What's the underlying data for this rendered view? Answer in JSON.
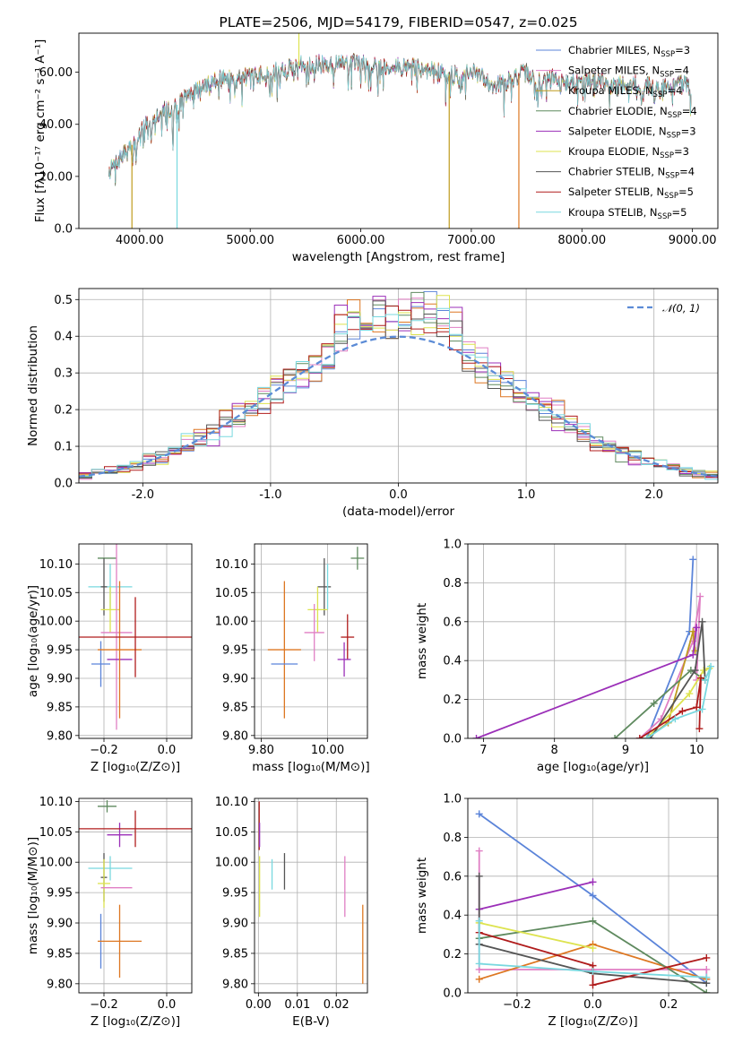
{
  "colors": {
    "Chabrier MILES": "#5b84d9",
    "Salpeter MILES": "#e07fc4",
    "Kroupa MILES": "#bf9b1e",
    "Chabrier ELODIE": "#5f8a5f",
    "Salpeter ELODIE": "#9b2fb8",
    "Kroupa ELODIE": "#dde34f",
    "Chabrier STELIB": "#555555",
    "Salpeter STELIB": "#b01c1c",
    "Kroupa STELIB": "#78d8df",
    "orange": "#dd7722",
    "gauss": "#5b8bd6"
  },
  "chart_data": [
    {
      "id": "spectrum",
      "type": "line",
      "title": "PLATE=2506, MJD=54179, FIBERID=0547, z=0.025",
      "xlabel": "wavelength [Angstrom, rest frame]",
      "ylabel": "Flux [fλ10⁻¹⁷ erg cm⁻² s⁻¹ A⁻¹]",
      "xlim": [
        3450,
        9230
      ],
      "ylim": [
        0,
        75
      ],
      "xticks": [
        4000,
        5000,
        6000,
        7000,
        8000,
        9000
      ],
      "yticks": [
        0,
        20,
        40,
        60
      ],
      "grid": false,
      "legend_position": "top-right",
      "series_names": [
        "Chabrier MILES",
        "Salpeter MILES",
        "Kroupa MILES",
        "Chabrier ELODIE",
        "Salpeter ELODIE",
        "Kroupa ELODIE",
        "Chabrier STELIB",
        "Salpeter STELIB",
        "Kroupa STELIB"
      ],
      "legend": [
        {
          "label": "Chabrier MILES, N",
          "sub": "SSP",
          "suffix": "=3"
        },
        {
          "label": "Salpeter MILES, N",
          "sub": "SSP",
          "suffix": "=4"
        },
        {
          "label": "Kroupa MILES, N",
          "sub": "SSP",
          "suffix": "=4"
        },
        {
          "label": "Chabrier ELODIE, N",
          "sub": "SSP",
          "suffix": "=4"
        },
        {
          "label": "Salpeter ELODIE, N",
          "sub": "SSP",
          "suffix": "=3"
        },
        {
          "label": "Kroupa ELODIE, N",
          "sub": "SSP",
          "suffix": "=3"
        },
        {
          "label": "Chabrier STELIB, N",
          "sub": "SSP",
          "suffix": "=4"
        },
        {
          "label": "Salpeter STELIB, N",
          "sub": "SSP",
          "suffix": "=5"
        },
        {
          "label": "Kroupa STELIB, N",
          "sub": "SSP",
          "suffix": "=5"
        }
      ],
      "continuum": [
        [
          3720,
          22
        ],
        [
          3800,
          26
        ],
        [
          3900,
          30
        ],
        [
          4000,
          37
        ],
        [
          4100,
          42
        ],
        [
          4200,
          45
        ],
        [
          4300,
          46
        ],
        [
          4400,
          50
        ],
        [
          4500,
          53
        ],
        [
          4600,
          55
        ],
        [
          4700,
          57
        ],
        [
          4800,
          58
        ],
        [
          4900,
          59
        ],
        [
          5000,
          58
        ],
        [
          5100,
          59
        ],
        [
          5200,
          60
        ],
        [
          5300,
          61
        ],
        [
          5400,
          62
        ],
        [
          5500,
          63
        ],
        [
          5600,
          63
        ],
        [
          5700,
          63
        ],
        [
          5800,
          63
        ],
        [
          5900,
          64
        ],
        [
          6000,
          63
        ],
        [
          6100,
          63
        ],
        [
          6200,
          62
        ],
        [
          6300,
          62
        ],
        [
          6400,
          62
        ],
        [
          6500,
          62
        ],
        [
          6600,
          61
        ],
        [
          6700,
          60
        ],
        [
          6800,
          59
        ],
        [
          6900,
          59
        ],
        [
          7000,
          60
        ],
        [
          7100,
          58
        ],
        [
          7200,
          55
        ],
        [
          7300,
          56
        ],
        [
          7400,
          58
        ],
        [
          7500,
          60
        ],
        [
          7600,
          56
        ],
        [
          7700,
          58
        ],
        [
          7800,
          57
        ],
        [
          7900,
          56
        ],
        [
          8000,
          56
        ],
        [
          8100,
          57
        ],
        [
          8200,
          56
        ],
        [
          8300,
          54
        ],
        [
          8400,
          56
        ],
        [
          8500,
          55
        ],
        [
          8600,
          55
        ],
        [
          8700,
          54
        ],
        [
          8800,
          54
        ],
        [
          8900,
          56
        ],
        [
          8990,
          53
        ]
      ],
      "absorption": [
        [
          3934,
          12
        ],
        [
          3969,
          10
        ],
        [
          4102,
          8
        ],
        [
          4300,
          12
        ],
        [
          4340,
          9
        ],
        [
          4861,
          6
        ],
        [
          5175,
          8
        ],
        [
          5270,
          4
        ],
        [
          5890,
          7
        ],
        [
          6563,
          4
        ],
        [
          7590,
          8
        ],
        [
          8498,
          3
        ],
        [
          8542,
          5
        ],
        [
          8662,
          4
        ]
      ],
      "spikes": [
        {
          "series": "Kroupa MILES",
          "x": 3930,
          "to": 0
        },
        {
          "series": "Kroupa STELIB",
          "x": 4338,
          "to": 0
        },
        {
          "series": "Kroupa MILES",
          "x": 6800,
          "to": 0
        },
        {
          "series": "orange",
          "x": 7430,
          "to": 0
        },
        {
          "series": "Kroupa ELODIE",
          "x": 5440,
          "to": 75
        }
      ]
    },
    {
      "id": "residuals",
      "type": "line",
      "xlabel": "(data-model)/error",
      "ylabel": "Normed distribution",
      "xlim": [
        -2.5,
        2.5
      ],
      "ylim": [
        0,
        0.53
      ],
      "xticks": [
        -2,
        -1,
        0,
        1,
        2
      ],
      "yticks": [
        0.0,
        0.1,
        0.2,
        0.3,
        0.4,
        0.5
      ],
      "grid": true,
      "legend_position": "top-right",
      "legend": [
        {
          "label": "𝒩(0, 1)",
          "series": "gauss"
        }
      ],
      "bin_width": 0.1,
      "series_names": [
        "Chabrier MILES",
        "Salpeter MILES",
        "Kroupa MILES",
        "Chabrier ELODIE",
        "Salpeter ELODIE",
        "Kroupa ELODIE",
        "Chabrier STELIB",
        "Salpeter STELIB",
        "Kroupa STELIB"
      ]
    },
    {
      "id": "age-vs-z",
      "type": "scatter",
      "xlabel": "Z [log₁₀(Z/Z⊙)]",
      "ylabel": "age  [log₁₀(age/yr)]",
      "xlim": [
        -0.28,
        0.08
      ],
      "ylim": [
        9.795,
        10.135
      ],
      "xticks": [
        -0.2,
        0.0
      ],
      "yticks": [
        9.8,
        9.85,
        9.9,
        9.95,
        10.0,
        10.05,
        10.1
      ],
      "grid": true,
      "points": [
        {
          "series": "Chabrier ELODIE",
          "x": -0.19,
          "xerr": 0.03,
          "y": 10.11,
          "yerr": 0.0
        },
        {
          "series": "Chabrier MILES",
          "x": -0.21,
          "xerr": 0.03,
          "y": 9.925,
          "yerr": 0.04
        },
        {
          "series": "Kroupa STELIB",
          "x": -0.18,
          "xerr": 0.07,
          "y": 10.06,
          "yerr": 0.04
        },
        {
          "series": "Chabrier STELIB",
          "x": -0.2,
          "xerr": 0.01,
          "y": 10.06,
          "yerr": 0.05
        },
        {
          "series": "Kroupa ELODIE",
          "x": -0.18,
          "xerr": 0.03,
          "y": 10.02,
          "yerr": 0.04
        },
        {
          "series": "Salpeter MILES",
          "x": -0.16,
          "xerr": 0.05,
          "y": 9.98,
          "yerr": 0.17
        },
        {
          "series": "Salpeter ELODIE",
          "x": -0.15,
          "xerr": 0.04,
          "y": 9.933,
          "yerr": 0.0
        },
        {
          "series": "orange",
          "x": -0.15,
          "xerr": 0.07,
          "y": 9.95,
          "yerr": 0.12
        },
        {
          "series": "Salpeter STELIB",
          "x": -0.1,
          "xerr": 0.18,
          "y": 9.972,
          "yerr": 0.07
        }
      ]
    },
    {
      "id": "age-vs-mass",
      "type": "scatter",
      "xlabel": "mass [log₁₀(M/M⊙)]",
      "xlim": [
        9.78,
        10.12
      ],
      "ylim": [
        9.795,
        10.135
      ],
      "xticks": [
        9.8,
        10.0
      ],
      "yticks": [
        9.8,
        9.85,
        9.9,
        9.95,
        10.0,
        10.05,
        10.1
      ],
      "grid": true,
      "points": [
        {
          "series": "Chabrier ELODIE",
          "x": 10.09,
          "xerr": 0.02,
          "y": 10.11,
          "yerr": 0.02
        },
        {
          "series": "Chabrier STELIB",
          "x": 9.99,
          "xerr": 0.02,
          "y": 10.06,
          "yerr": 0.05
        },
        {
          "series": "Kroupa STELIB",
          "x": 10.0,
          "xerr": 0.0,
          "y": 10.06,
          "yerr": 0.04
        },
        {
          "series": "Kroupa ELODIE",
          "x": 9.97,
          "xerr": 0.03,
          "y": 10.02,
          "yerr": 0.04
        },
        {
          "series": "Salpeter MILES",
          "x": 9.96,
          "xerr": 0.03,
          "y": 9.98,
          "yerr": 0.05
        },
        {
          "series": "Salpeter STELIB",
          "x": 10.06,
          "xerr": 0.02,
          "y": 9.972,
          "yerr": 0.04
        },
        {
          "series": "orange",
          "x": 9.87,
          "xerr": 0.05,
          "y": 9.95,
          "yerr": 0.12
        },
        {
          "series": "Salpeter ELODIE",
          "x": 10.05,
          "xerr": 0.02,
          "y": 9.933,
          "yerr": 0.03
        },
        {
          "series": "Chabrier MILES",
          "x": 9.87,
          "xerr": 0.04,
          "y": 9.925,
          "yerr": 0.0
        }
      ]
    },
    {
      "id": "weight-vs-age",
      "type": "line",
      "xlabel": "age  [log₁₀(age/yr)]",
      "ylabel": "mass weight",
      "xlim": [
        6.78,
        10.3
      ],
      "ylim": [
        0,
        1.0
      ],
      "xticks": [
        7,
        8,
        9,
        10
      ],
      "yticks": [
        0.0,
        0.2,
        0.4,
        0.6,
        0.8,
        1.0
      ],
      "grid": true,
      "series": [
        {
          "name": "Chabrier MILES",
          "x": [
            9.3,
            9.9,
            9.95
          ],
          "y": [
            0.0,
            0.55,
            0.92
          ]
        },
        {
          "name": "Salpeter MILES",
          "x": [
            9.2,
            9.5,
            9.95,
            10.05,
            10.0
          ],
          "y": [
            0.0,
            0.1,
            0.5,
            0.73,
            0.3
          ]
        },
        {
          "name": "Kroupa MILES",
          "x": [
            9.3,
            9.6,
            9.95,
            9.98
          ],
          "y": [
            0.0,
            0.08,
            0.55,
            0.45
          ]
        },
        {
          "name": "Chabrier ELODIE",
          "x": [
            8.85,
            9.4,
            9.92,
            10.12
          ],
          "y": [
            0.0,
            0.18,
            0.35,
            0.3
          ]
        },
        {
          "name": "Salpeter ELODIE",
          "x": [
            6.9,
            9.95,
            10.0
          ],
          "y": [
            0.0,
            0.43,
            0.57
          ]
        },
        {
          "name": "Kroupa ELODIE",
          "x": [
            9.3,
            9.9,
            10.1,
            10.18
          ],
          "y": [
            0.0,
            0.23,
            0.35,
            0.36
          ]
        },
        {
          "name": "Chabrier STELIB",
          "x": [
            9.35,
            9.98,
            10.08,
            10.12
          ],
          "y": [
            0.0,
            0.35,
            0.6,
            0.3
          ]
        },
        {
          "name": "Salpeter STELIB",
          "x": [
            9.2,
            9.8,
            10.0,
            10.06,
            10.04
          ],
          "y": [
            0.0,
            0.14,
            0.16,
            0.31,
            0.05
          ]
        },
        {
          "name": "Kroupa STELIB",
          "x": [
            9.3,
            9.7,
            10.08,
            10.2,
            10.12
          ],
          "y": [
            0.0,
            0.1,
            0.15,
            0.37,
            0.3
          ]
        }
      ]
    },
    {
      "id": "mass-vs-z",
      "type": "scatter",
      "xlabel": "Z [log₁₀(Z/Z⊙)]",
      "ylabel": "mass [log₁₀(M/M⊙)]",
      "xlim": [
        -0.28,
        0.08
      ],
      "ylim": [
        9.785,
        10.105
      ],
      "xticks": [
        -0.2,
        0.0
      ],
      "yticks": [
        9.8,
        9.85,
        9.9,
        9.95,
        10.0,
        10.05,
        10.1
      ],
      "grid": true,
      "points": [
        {
          "series": "Chabrier ELODIE",
          "x": -0.19,
          "xerr": 0.03,
          "y": 10.092,
          "yerr": 0.01
        },
        {
          "series": "Salpeter ELODIE",
          "x": -0.15,
          "xerr": 0.04,
          "y": 10.045,
          "yerr": 0.02
        },
        {
          "series": "Salpeter STELIB",
          "x": -0.1,
          "xerr": 0.18,
          "y": 10.055,
          "yerr": 0.03
        },
        {
          "series": "Kroupa STELIB",
          "x": -0.18,
          "xerr": 0.07,
          "y": 9.99,
          "yerr": 0.02
        },
        {
          "series": "Chabrier STELIB",
          "x": -0.2,
          "xerr": 0.01,
          "y": 9.975,
          "yerr": 0.04
        },
        {
          "series": "Kroupa ELODIE",
          "x": -0.2,
          "xerr": 0.02,
          "y": 9.965,
          "yerr": 0.04
        },
        {
          "series": "Salpeter MILES",
          "x": -0.16,
          "xerr": 0.05,
          "y": 9.958,
          "yerr": 0.0
        },
        {
          "series": "Chabrier MILES",
          "x": -0.21,
          "xerr": 0.0,
          "y": 9.87,
          "yerr": 0.045
        },
        {
          "series": "orange",
          "x": -0.15,
          "xerr": 0.07,
          "y": 9.87,
          "yerr": 0.06
        }
      ]
    },
    {
      "id": "mass-vs-ebv",
      "type": "scatter",
      "xlabel": "E(B-V)",
      "xlim": [
        -0.001,
        0.028
      ],
      "ylim": [
        9.785,
        10.105
      ],
      "xticks": [
        0.0,
        0.01,
        0.02
      ],
      "yticks": [
        9.8,
        9.85,
        9.9,
        9.95,
        10.0,
        10.05,
        10.1
      ],
      "grid": true,
      "points": [
        {
          "series": "Salpeter STELIB",
          "x": 0.0002,
          "xerr": 0,
          "y": 10.06,
          "yerr": 0.04
        },
        {
          "series": "Salpeter ELODIE",
          "x": 0.0003,
          "xerr": 0,
          "y": 10.045,
          "yerr": 0.02
        },
        {
          "series": "Kroupa ELODIE",
          "x": 0.0003,
          "xerr": 0,
          "y": 9.96,
          "yerr": 0.05
        },
        {
          "series": "Kroupa STELIB",
          "x": 0.0035,
          "xerr": 0,
          "y": 9.98,
          "yerr": 0.025
        },
        {
          "series": "Chabrier STELIB",
          "x": 0.0067,
          "xerr": 0,
          "y": 9.985,
          "yerr": 0.03
        },
        {
          "series": "Salpeter MILES",
          "x": 0.0222,
          "xerr": 0,
          "y": 9.96,
          "yerr": 0.05
        },
        {
          "series": "orange",
          "x": 0.0268,
          "xerr": 0,
          "y": 9.865,
          "yerr": 0.065
        }
      ]
    },
    {
      "id": "weight-vs-z",
      "type": "line",
      "xlabel": "Z [log₁₀(Z/Z⊙)]",
      "ylabel": "mass weight",
      "xlim": [
        -0.33,
        0.33
      ],
      "ylim": [
        0,
        1.0
      ],
      "xticks": [
        -0.2,
        0.0,
        0.2
      ],
      "yticks": [
        0.0,
        0.2,
        0.4,
        0.6,
        0.8,
        1.0
      ],
      "grid": true,
      "series": [
        {
          "name": "Chabrier MILES",
          "x": [
            -0.3,
            0.0,
            0.3
          ],
          "y": [
            0.92,
            0.5,
            0.05
          ]
        },
        {
          "name": "Salpeter MILES",
          "x": [
            -0.3,
            -0.3,
            0.3,
            0.3
          ],
          "y": [
            0.73,
            0.12,
            0.12,
            0.07
          ]
        },
        {
          "name": "orange",
          "x": [
            -0.3,
            0.0,
            0.3
          ],
          "y": [
            0.07,
            0.25,
            0.07
          ]
        },
        {
          "name": "Chabrier ELODIE",
          "x": [
            -0.3,
            0.0,
            0.3
          ],
          "y": [
            0.28,
            0.37,
            0.0
          ]
        },
        {
          "name": "Salpeter ELODIE",
          "x": [
            -0.3,
            0.0
          ],
          "y": [
            0.43,
            0.57
          ]
        },
        {
          "name": "Kroupa ELODIE",
          "x": [
            -0.3,
            0.0
          ],
          "y": [
            0.36,
            0.23
          ]
        },
        {
          "name": "Chabrier STELIB",
          "x": [
            -0.3,
            -0.3,
            0.0,
            0.3
          ],
          "y": [
            0.6,
            0.25,
            0.1,
            0.05
          ]
        },
        {
          "name": "Salpeter STELIB",
          "x": [
            -0.3,
            0.0,
            0.0,
            0.3
          ],
          "y": [
            0.31,
            0.14,
            0.04,
            0.18
          ]
        },
        {
          "name": "Kroupa STELIB",
          "x": [
            -0.3,
            -0.3,
            0.0,
            0.3
          ],
          "y": [
            0.37,
            0.15,
            0.11,
            0.08
          ]
        }
      ]
    }
  ]
}
